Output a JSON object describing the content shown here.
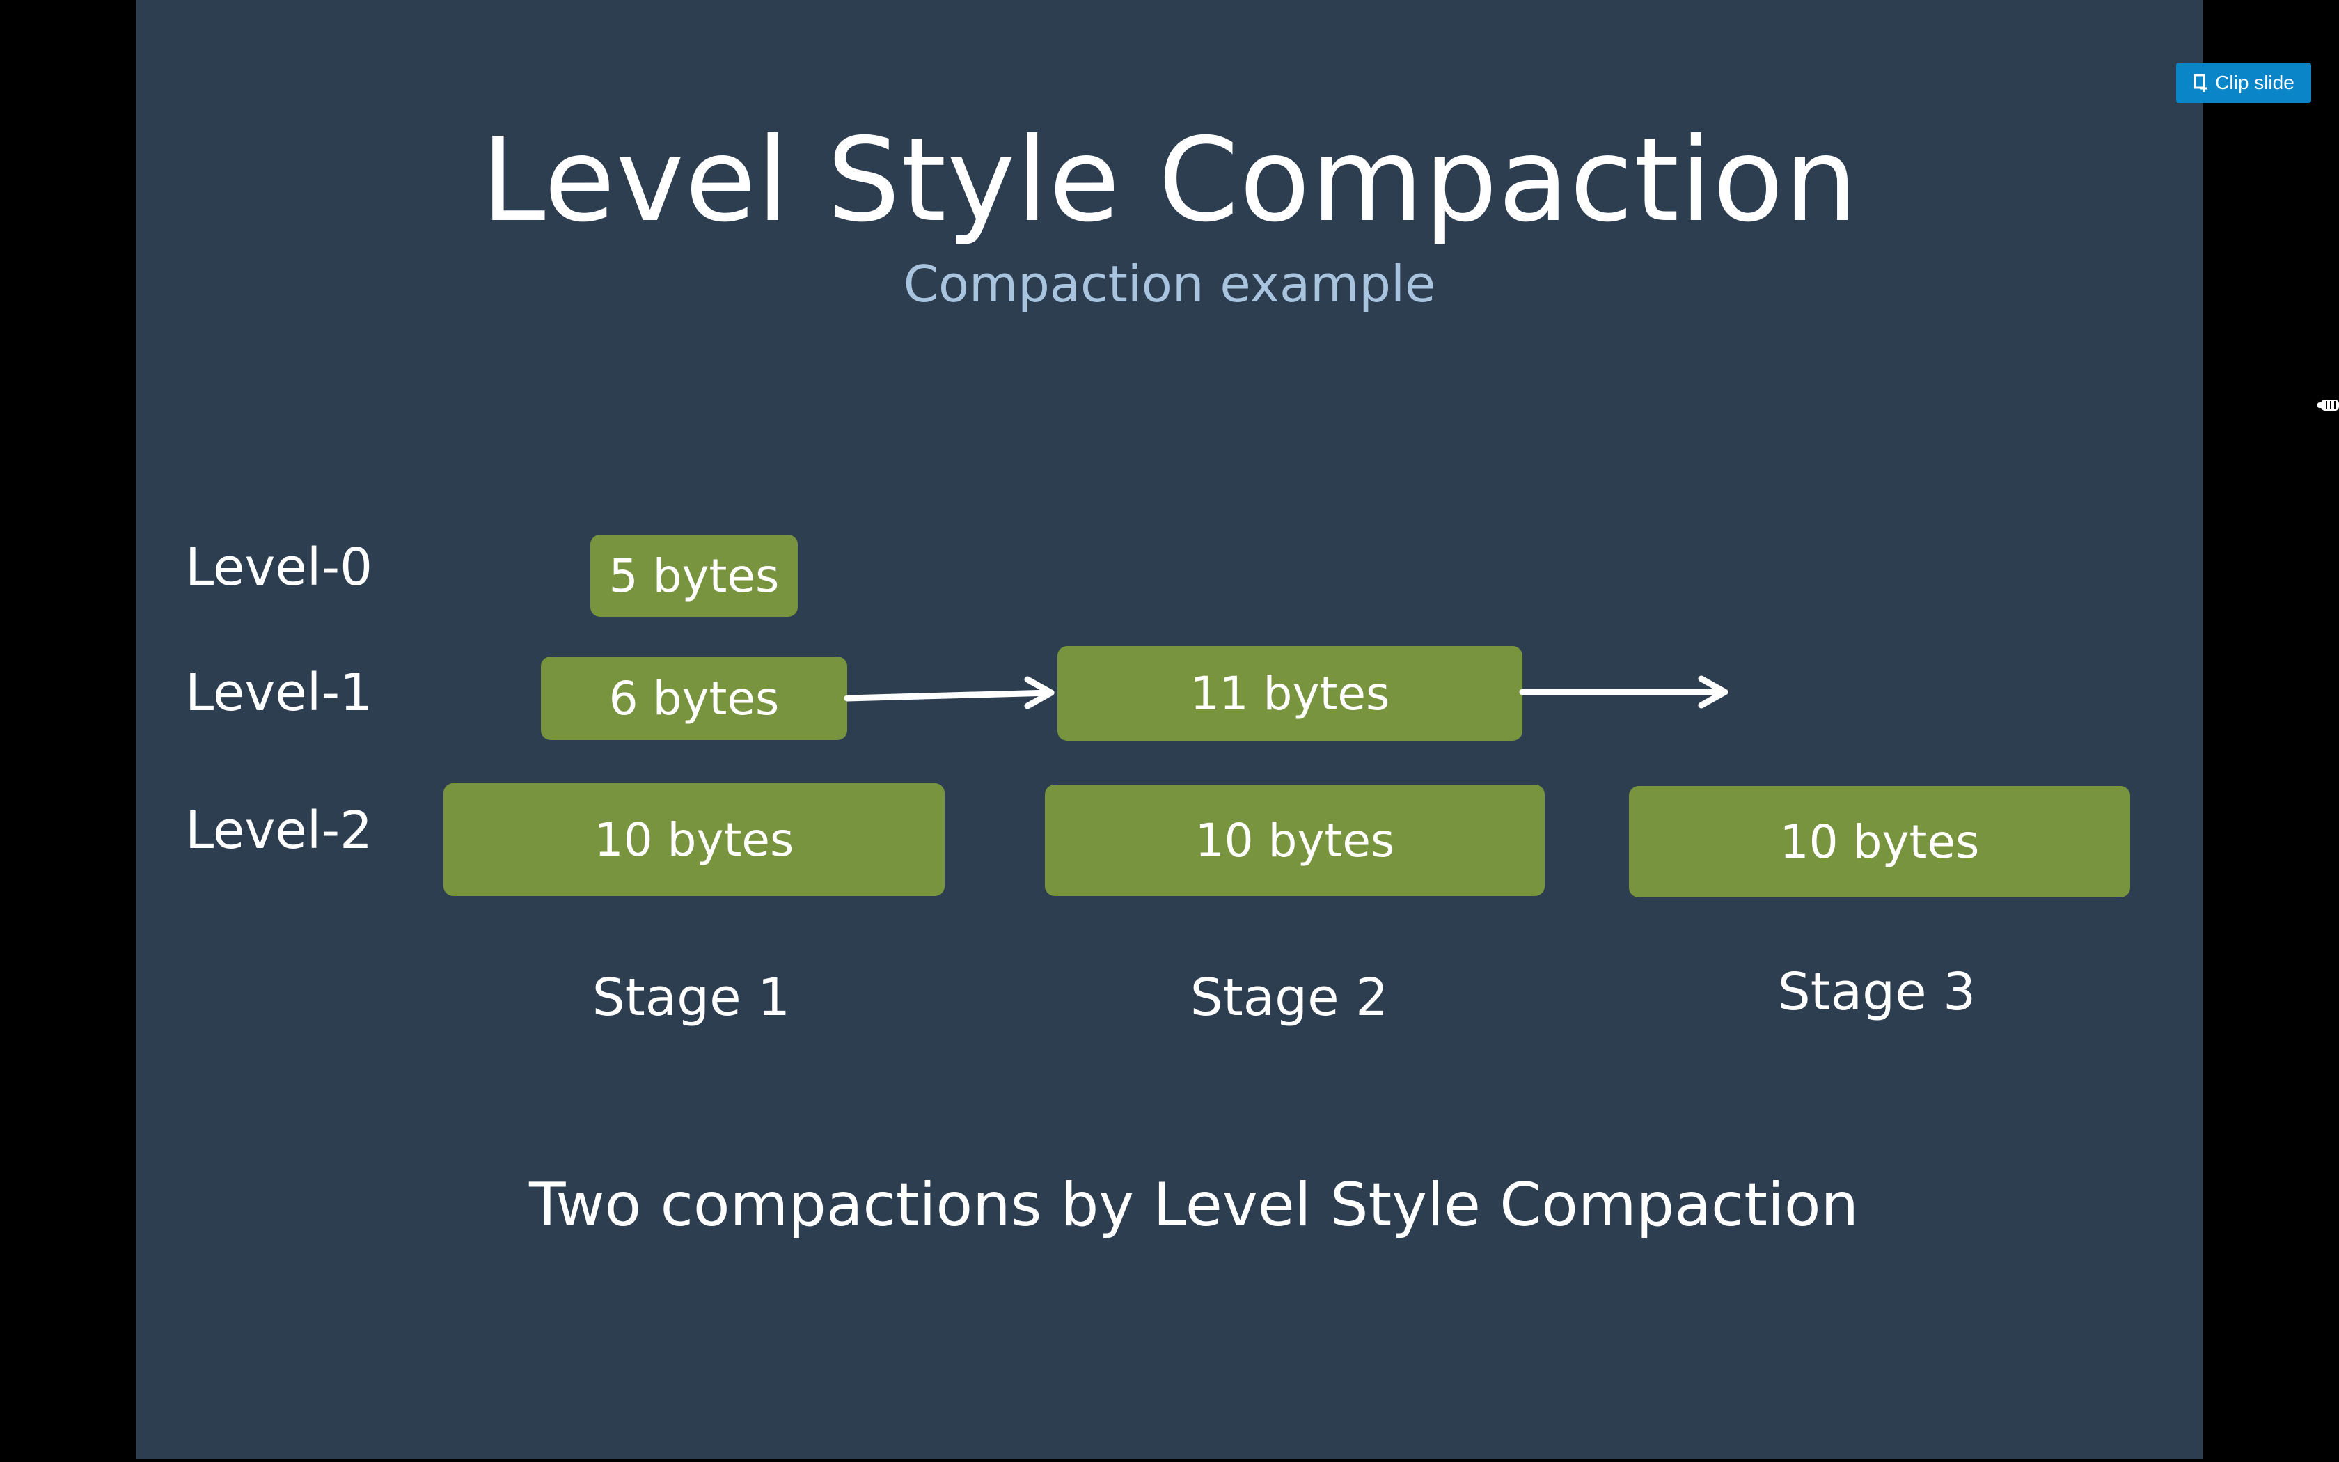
{
  "slide": {
    "title": "Level Style Compaction",
    "subtitle": "Compaction example",
    "levels": [
      "Level-0",
      "Level-1",
      "Level-2"
    ],
    "stages": [
      "Stage 1",
      "Stage 2",
      "Stage 3"
    ],
    "blocks": {
      "stage1": {
        "level0": "5 bytes",
        "level1": "6 bytes",
        "level2": "10 bytes"
      },
      "stage2": {
        "level1": "11 bytes",
        "level2": "10 bytes"
      },
      "stage3": {
        "level2": "10 bytes"
      }
    },
    "caption": "Two compactions by Level Style Compaction"
  },
  "toolbar": {
    "clip_label": "Clip slide"
  },
  "colors": {
    "slide_background": "#2e3e51",
    "block_green": "#78943e",
    "subtitle_blue": "#a9c4de",
    "clip_button_blue": "#0a85c7"
  },
  "icons": {
    "clip": "clip-slide-icon",
    "side": "hand-cursor-icon"
  }
}
